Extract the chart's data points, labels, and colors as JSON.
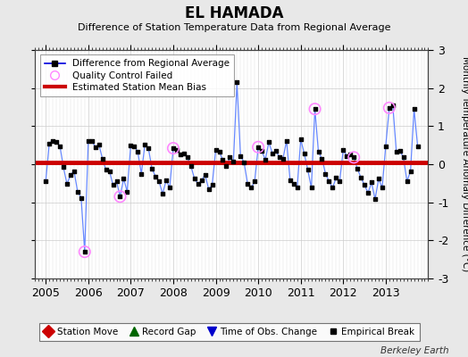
{
  "title": "EL HAMADA",
  "subtitle": "Difference of Station Temperature Data from Regional Average",
  "ylabel_right": "Monthly Temperature Anomaly Difference (°C)",
  "ylim": [
    -3,
    3
  ],
  "yticks": [
    -3,
    -2,
    -1,
    0,
    1,
    2,
    3
  ],
  "bias_line": 0.05,
  "background_color": "#e8e8e8",
  "plot_bg_color": "#ffffff",
  "line_color": "#6688ff",
  "marker_color": "#000000",
  "bias_color": "#cc0000",
  "qc_color": "#ff88ff",
  "watermark": "Berkeley Earth",
  "x_start_year": 2004.75,
  "x_end_year": 2014.0,
  "xtick_years": [
    2005,
    2006,
    2007,
    2008,
    2009,
    2010,
    2011,
    2012,
    2013
  ],
  "data_values": [
    -0.45,
    0.55,
    0.62,
    0.58,
    0.48,
    -0.08,
    -0.52,
    -0.28,
    -0.18,
    -0.72,
    -0.88,
    -2.3,
    0.6,
    0.62,
    0.45,
    0.52,
    0.15,
    -0.15,
    -0.18,
    -0.55,
    -0.45,
    -0.85,
    -0.38,
    -0.72,
    0.5,
    0.48,
    0.32,
    -0.25,
    0.52,
    0.42,
    -0.12,
    -0.32,
    -0.45,
    -0.78,
    -0.42,
    -0.62,
    0.42,
    0.38,
    0.25,
    0.28,
    0.18,
    -0.05,
    -0.38,
    -0.52,
    -0.42,
    -0.28,
    -0.65,
    -0.55,
    0.38,
    0.32,
    0.12,
    -0.05,
    0.18,
    0.08,
    2.15,
    0.22,
    0.05,
    -0.52,
    -0.62,
    -0.45,
    0.45,
    0.35,
    0.12,
    0.58,
    0.28,
    0.35,
    0.18,
    0.15,
    0.62,
    -0.42,
    -0.52,
    -0.62,
    0.65,
    0.28,
    -0.15,
    -0.62,
    1.45,
    0.32,
    0.15,
    -0.25,
    -0.45,
    -0.62,
    -0.35,
    -0.45,
    0.38,
    0.22,
    0.25,
    0.18,
    -0.12,
    -0.35,
    -0.55,
    -0.75,
    -0.48,
    -0.92,
    -0.38,
    -0.62,
    0.48,
    1.48,
    1.55,
    0.32,
    0.35,
    0.18,
    -0.45,
    -0.18,
    1.45,
    0.48
  ],
  "qc_failed_indices": [
    11,
    21,
    36,
    60,
    76,
    87,
    97
  ],
  "legend_top": [
    {
      "label": "Difference from Regional Average",
      "line_color": "#0000dd",
      "marker": "s",
      "marker_color": "#000000"
    },
    {
      "label": "Quality Control Failed",
      "marker_color": "#ff88ff"
    },
    {
      "label": "Estimated Station Mean Bias",
      "line_color": "#cc0000"
    }
  ],
  "bottom_legend_items": [
    {
      "label": "Station Move",
      "color": "#cc0000",
      "marker": "D",
      "markersize": 7
    },
    {
      "label": "Record Gap",
      "color": "#006600",
      "marker": "^",
      "markersize": 7
    },
    {
      "label": "Time of Obs. Change",
      "color": "#0000cc",
      "marker": "v",
      "markersize": 7
    },
    {
      "label": "Empirical Break",
      "color": "#000000",
      "marker": "s",
      "markersize": 5
    }
  ]
}
